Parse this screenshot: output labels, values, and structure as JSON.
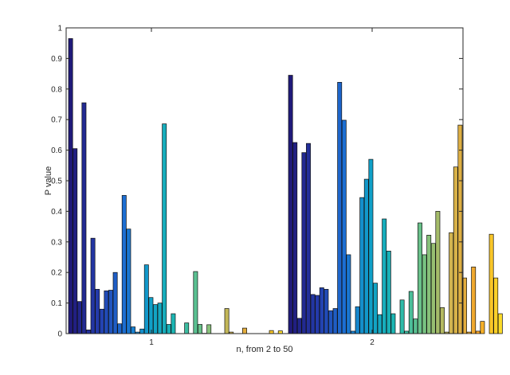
{
  "chart_data": {
    "type": "bar",
    "categories": [
      "1",
      "2"
    ],
    "xlabel": "n, from 2 to 50",
    "ylabel": "P value",
    "ylim": [
      0,
      1
    ],
    "yticks": [
      "0",
      "0.1",
      "0.2",
      "0.3",
      "0.4",
      "0.5",
      "0.6",
      "0.7",
      "0.8",
      "0.9",
      "1"
    ],
    "grid": false,
    "legend": "none",
    "colormap_start": "#201a7a",
    "colormap_end": "#fce62a",
    "series_count": 49,
    "groups": [
      {
        "category": "1",
        "values": [
          0.965,
          0.605,
          0.105,
          0.755,
          0.012,
          0.312,
          0.145,
          0.08,
          0.14,
          0.142,
          0.2,
          0.032,
          0.452,
          0.342,
          0.022,
          0.005,
          0.015,
          0.225,
          0.118,
          0.095,
          0.1,
          0.686,
          0.03,
          0.065,
          0.0,
          0.0,
          0.035,
          0.0,
          0.203,
          0.03,
          0.001,
          0.029,
          0.0,
          0.0,
          0.0,
          0.082,
          0.005,
          0.0,
          0.0,
          0.018,
          0.0,
          0.0,
          0.0,
          0.0,
          0.0,
          0.01,
          0.0,
          0.009,
          0.0
        ]
      },
      {
        "category": "2",
        "values": [
          0.845,
          0.625,
          0.05,
          0.592,
          0.622,
          0.128,
          0.125,
          0.15,
          0.145,
          0.075,
          0.082,
          0.822,
          0.698,
          0.258,
          0.008,
          0.088,
          0.445,
          0.505,
          0.57,
          0.165,
          0.062,
          0.375,
          0.27,
          0.065,
          0.0,
          0.11,
          0.008,
          0.138,
          0.048,
          0.362,
          0.258,
          0.322,
          0.295,
          0.4,
          0.085,
          0.005,
          0.33,
          0.545,
          0.682,
          0.182,
          0.005,
          0.218,
          0.008,
          0.04,
          0.0,
          0.325,
          0.182,
          0.065,
          0.0
        ]
      }
    ]
  }
}
